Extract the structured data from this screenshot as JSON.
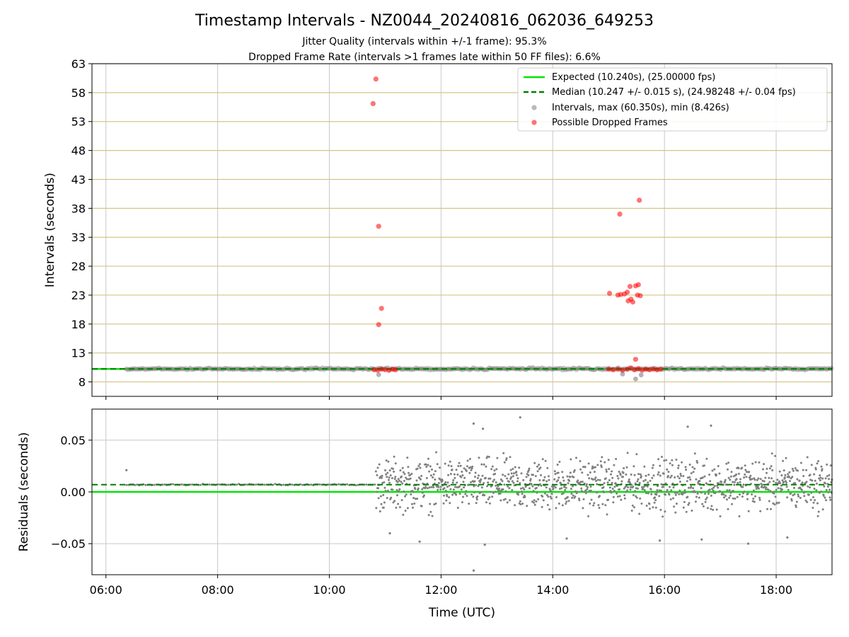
{
  "figure": {
    "title": "Timestamp Intervals - NZ0044_20240816_062036_649253",
    "subtitle_1": "Jitter Quality (intervals within +/-1 frame): 95.3%",
    "subtitle_2": "Dropped Frame Rate (intervals >1 frames late within 50 FF files): 6.6%"
  },
  "colors": {
    "expected": "#00e600",
    "median": "#007f00",
    "intervals": "#808080",
    "dropped": "#ff0000",
    "y_grid_top": "#d4c48a",
    "grid": "#c8c8c8"
  },
  "chart_data": [
    {
      "type": "scatter",
      "ylabel": "Intervals (seconds)",
      "xlim": [
        "05:45",
        "19:00"
      ],
      "ylim": [
        5.5,
        63
      ],
      "x_ticks": [
        "06:00",
        "08:00",
        "10:00",
        "12:00",
        "14:00",
        "16:00",
        "18:00"
      ],
      "y_ticks": [
        8,
        13,
        18,
        23,
        28,
        33,
        38,
        43,
        48,
        53,
        58,
        63
      ],
      "x_grid": true,
      "y_grid": true,
      "legend_position": "top-right",
      "legend": [
        "Expected (10.240s), (25.00000 fps)",
        "Median (10.247 +/- 0.015 s), (24.98248 +/- 0.04 fps)",
        "Intervals, max (60.350s), min (8.426s)",
        "Possible Dropped Frames"
      ],
      "series": [
        {
          "name": "Expected (10.240s), (25.00000 fps)",
          "kind": "hline",
          "y": 10.24
        },
        {
          "name": "Median (10.247 +/- 0.015 s), (24.98248 +/- 0.04 fps)",
          "kind": "hline-dashed",
          "y": 10.247
        },
        {
          "name": "Intervals, max (60.350s), min (8.426s)",
          "kind": "band",
          "x_start": "06:22",
          "x_end": "19:00",
          "y": 10.25,
          "points": [
            {
              "x": "10:53",
              "y": 9.25
            },
            {
              "x": "15:15",
              "y": 9.35
            },
            {
              "x": "15:29",
              "y": 8.5
            },
            {
              "x": "15:35",
              "y": 9.2
            }
          ]
        },
        {
          "name": "Possible Dropped Frames",
          "kind": "points",
          "points": [
            {
              "x": "10:50",
              "y": 60.35
            },
            {
              "x": "10:47",
              "y": 56.1
            },
            {
              "x": "10:53",
              "y": 34.9
            },
            {
              "x": "10:56",
              "y": 20.7
            },
            {
              "x": "10:53",
              "y": 17.9
            },
            {
              "x": "15:33",
              "y": 39.4
            },
            {
              "x": "15:12",
              "y": 37.0
            },
            {
              "x": "15:01",
              "y": 23.3
            },
            {
              "x": "15:10",
              "y": 23.0
            },
            {
              "x": "15:13",
              "y": 23.1
            },
            {
              "x": "15:17",
              "y": 23.2
            },
            {
              "x": "15:21",
              "y": 22.0
            },
            {
              "x": "15:24",
              "y": 22.3
            },
            {
              "x": "15:23",
              "y": 24.5
            },
            {
              "x": "15:26",
              "y": 21.8
            },
            {
              "x": "15:29",
              "y": 24.6
            },
            {
              "x": "15:32",
              "y": 24.8
            },
            {
              "x": "15:20",
              "y": 23.5
            },
            {
              "x": "15:31",
              "y": 23.0
            },
            {
              "x": "15:34",
              "y": 22.9
            },
            {
              "x": "15:29",
              "y": 11.9
            },
            {
              "x": "10:48",
              "y": 10.1
            },
            {
              "x": "10:52",
              "y": 10.0
            },
            {
              "x": "10:56",
              "y": 10.2
            },
            {
              "x": "11:00",
              "y": 10.1
            },
            {
              "x": "11:04",
              "y": 10.0
            },
            {
              "x": "11:08",
              "y": 10.2
            },
            {
              "x": "11:11",
              "y": 10.1
            },
            {
              "x": "15:00",
              "y": 10.2
            },
            {
              "x": "15:05",
              "y": 10.1
            },
            {
              "x": "15:10",
              "y": 10.2
            },
            {
              "x": "15:15",
              "y": 10.0
            },
            {
              "x": "15:20",
              "y": 10.2
            },
            {
              "x": "15:24",
              "y": 10.4
            },
            {
              "x": "15:28",
              "y": 10.1
            },
            {
              "x": "15:32",
              "y": 10.3
            },
            {
              "x": "15:36",
              "y": 10.0
            },
            {
              "x": "15:40",
              "y": 10.2
            },
            {
              "x": "15:44",
              "y": 10.1
            },
            {
              "x": "15:48",
              "y": 10.2
            },
            {
              "x": "15:52",
              "y": 10.1
            },
            {
              "x": "15:56",
              "y": 10.2
            }
          ]
        }
      ]
    },
    {
      "type": "scatter",
      "xlabel": "Time (UTC)",
      "ylabel": "Residuals (seconds)",
      "xlim": [
        "05:45",
        "19:00"
      ],
      "ylim": [
        -0.08,
        0.08
      ],
      "x_ticks": [
        "06:00",
        "08:00",
        "10:00",
        "12:00",
        "14:00",
        "16:00",
        "18:00"
      ],
      "y_ticks": [
        "0.05",
        "0.00",
        "−0.05"
      ],
      "y_tick_values": [
        0.05,
        0.0,
        -0.05
      ],
      "x_grid": true,
      "y_grid": true,
      "series": [
        {
          "name": "expected",
          "kind": "hline",
          "y": 0.0
        },
        {
          "name": "median",
          "kind": "hline-dashed",
          "y": 0.007
        },
        {
          "name": "residuals-early",
          "kind": "band",
          "x_start": "06:22",
          "x_end": "10:50",
          "y": 0.007,
          "spread": 0.001
        },
        {
          "name": "residuals-late",
          "kind": "band",
          "x_start": "10:50",
          "x_end": "19:00",
          "y": 0.007,
          "spread": 0.022
        },
        {
          "name": "residual-outliers",
          "kind": "points",
          "points": [
            {
              "x": "06:22",
              "y": 0.021
            },
            {
              "x": "12:35",
              "y": 0.066
            },
            {
              "x": "13:25",
              "y": 0.072
            },
            {
              "x": "12:45",
              "y": 0.061
            },
            {
              "x": "16:25",
              "y": 0.063
            },
            {
              "x": "16:50",
              "y": 0.064
            },
            {
              "x": "12:35",
              "y": -0.076
            },
            {
              "x": "12:47",
              "y": -0.051
            },
            {
              "x": "11:37",
              "y": -0.048
            },
            {
              "x": "17:30",
              "y": -0.05
            },
            {
              "x": "18:12",
              "y": -0.044
            },
            {
              "x": "15:55",
              "y": -0.047
            },
            {
              "x": "16:40",
              "y": -0.046
            },
            {
              "x": "14:15",
              "y": -0.045
            },
            {
              "x": "11:05",
              "y": -0.04
            }
          ]
        }
      ]
    }
  ]
}
